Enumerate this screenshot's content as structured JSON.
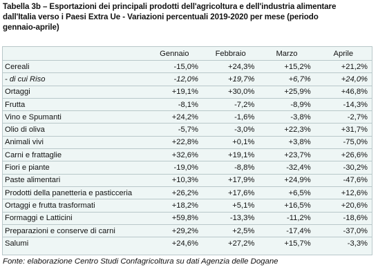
{
  "title": {
    "line1": "Tabella 3b – Esportazioni dei principali prodotti dell'agricoltura e dell'industria alimentare",
    "line2": "dall'Italia verso i Paesi Extra Ue - Variazioni percentuali 2019-2020 per mese (periodo",
    "line3": "gennaio-aprile)"
  },
  "table": {
    "headers": [
      "",
      "Gennaio",
      "Febbraio",
      "Marzo",
      "Aprile"
    ],
    "rows": [
      {
        "label": "Cereali",
        "values": [
          "-15,0%",
          "+24,3%",
          "+15,2%",
          "+21,2%"
        ],
        "italic": false
      },
      {
        "label": "- di cui Riso",
        "values": [
          "-12,0%",
          "+19,7%",
          "+6,7%",
          "+24,0%"
        ],
        "italic": true
      },
      {
        "label": "Ortaggi",
        "values": [
          "+19,1%",
          "+30,0%",
          "+25,9%",
          "+46,8%"
        ],
        "italic": false
      },
      {
        "label": "Frutta",
        "values": [
          "-8,1%",
          "-7,2%",
          "-8,9%",
          "-14,3%"
        ],
        "italic": false
      },
      {
        "label": "Vino e Spumanti",
        "values": [
          "+24,2%",
          "-1,6%",
          "-3,8%",
          "-2,7%"
        ],
        "italic": false
      },
      {
        "label": "Olio di oliva",
        "values": [
          "-5,7%",
          "-3,0%",
          "+22,3%",
          "+31,7%"
        ],
        "italic": false
      },
      {
        "label": "Animali vivi",
        "values": [
          "+22,8%",
          "+0,1%",
          "+3,8%",
          "-75,0%"
        ],
        "italic": false
      },
      {
        "label": "Carni e frattaglie",
        "values": [
          "+32,6%",
          "+19,1%",
          "+23,7%",
          "+26,6%"
        ],
        "italic": false
      },
      {
        "label": "Fiori e piante",
        "values": [
          "-19,0%",
          "-8,8%",
          "-32,4%",
          "-30,2%"
        ],
        "italic": false
      },
      {
        "label": "Paste alimentari",
        "values": [
          "+10,3%",
          "+17,9%",
          "+24,9%",
          "-47,6%"
        ],
        "italic": false
      },
      {
        "label": "Prodotti della panetteria e pasticceria",
        "values": [
          "+26,2%",
          "+17,6%",
          "+6,5%",
          "+12,6%"
        ],
        "italic": false
      },
      {
        "label": "Ortaggi e frutta trasformati",
        "values": [
          "+18,2%",
          "+5,1%",
          "+16,5%",
          "+20,6%"
        ],
        "italic": false
      },
      {
        "label": "Formaggi e Latticini",
        "values": [
          "+59,8%",
          "-13,3%",
          "-11,2%",
          "-18,6%"
        ],
        "italic": false
      },
      {
        "label": "Preparazioni e conserve di carni",
        "values": [
          "+29,2%",
          "+2,5%",
          "-17,4%",
          "-37,0%"
        ],
        "italic": false
      },
      {
        "label": "Salumi",
        "values": [
          "+24,6%",
          "+27,2%",
          "+15,7%",
          "-3,3%"
        ],
        "italic": false
      }
    ]
  },
  "source": "Fonte: elaborazione Centro Studi Confagricoltura su dati Agenzia delle Dogane",
  "colors": {
    "table_background": "#eef6f5",
    "grid_line": "#b8c7c9"
  }
}
